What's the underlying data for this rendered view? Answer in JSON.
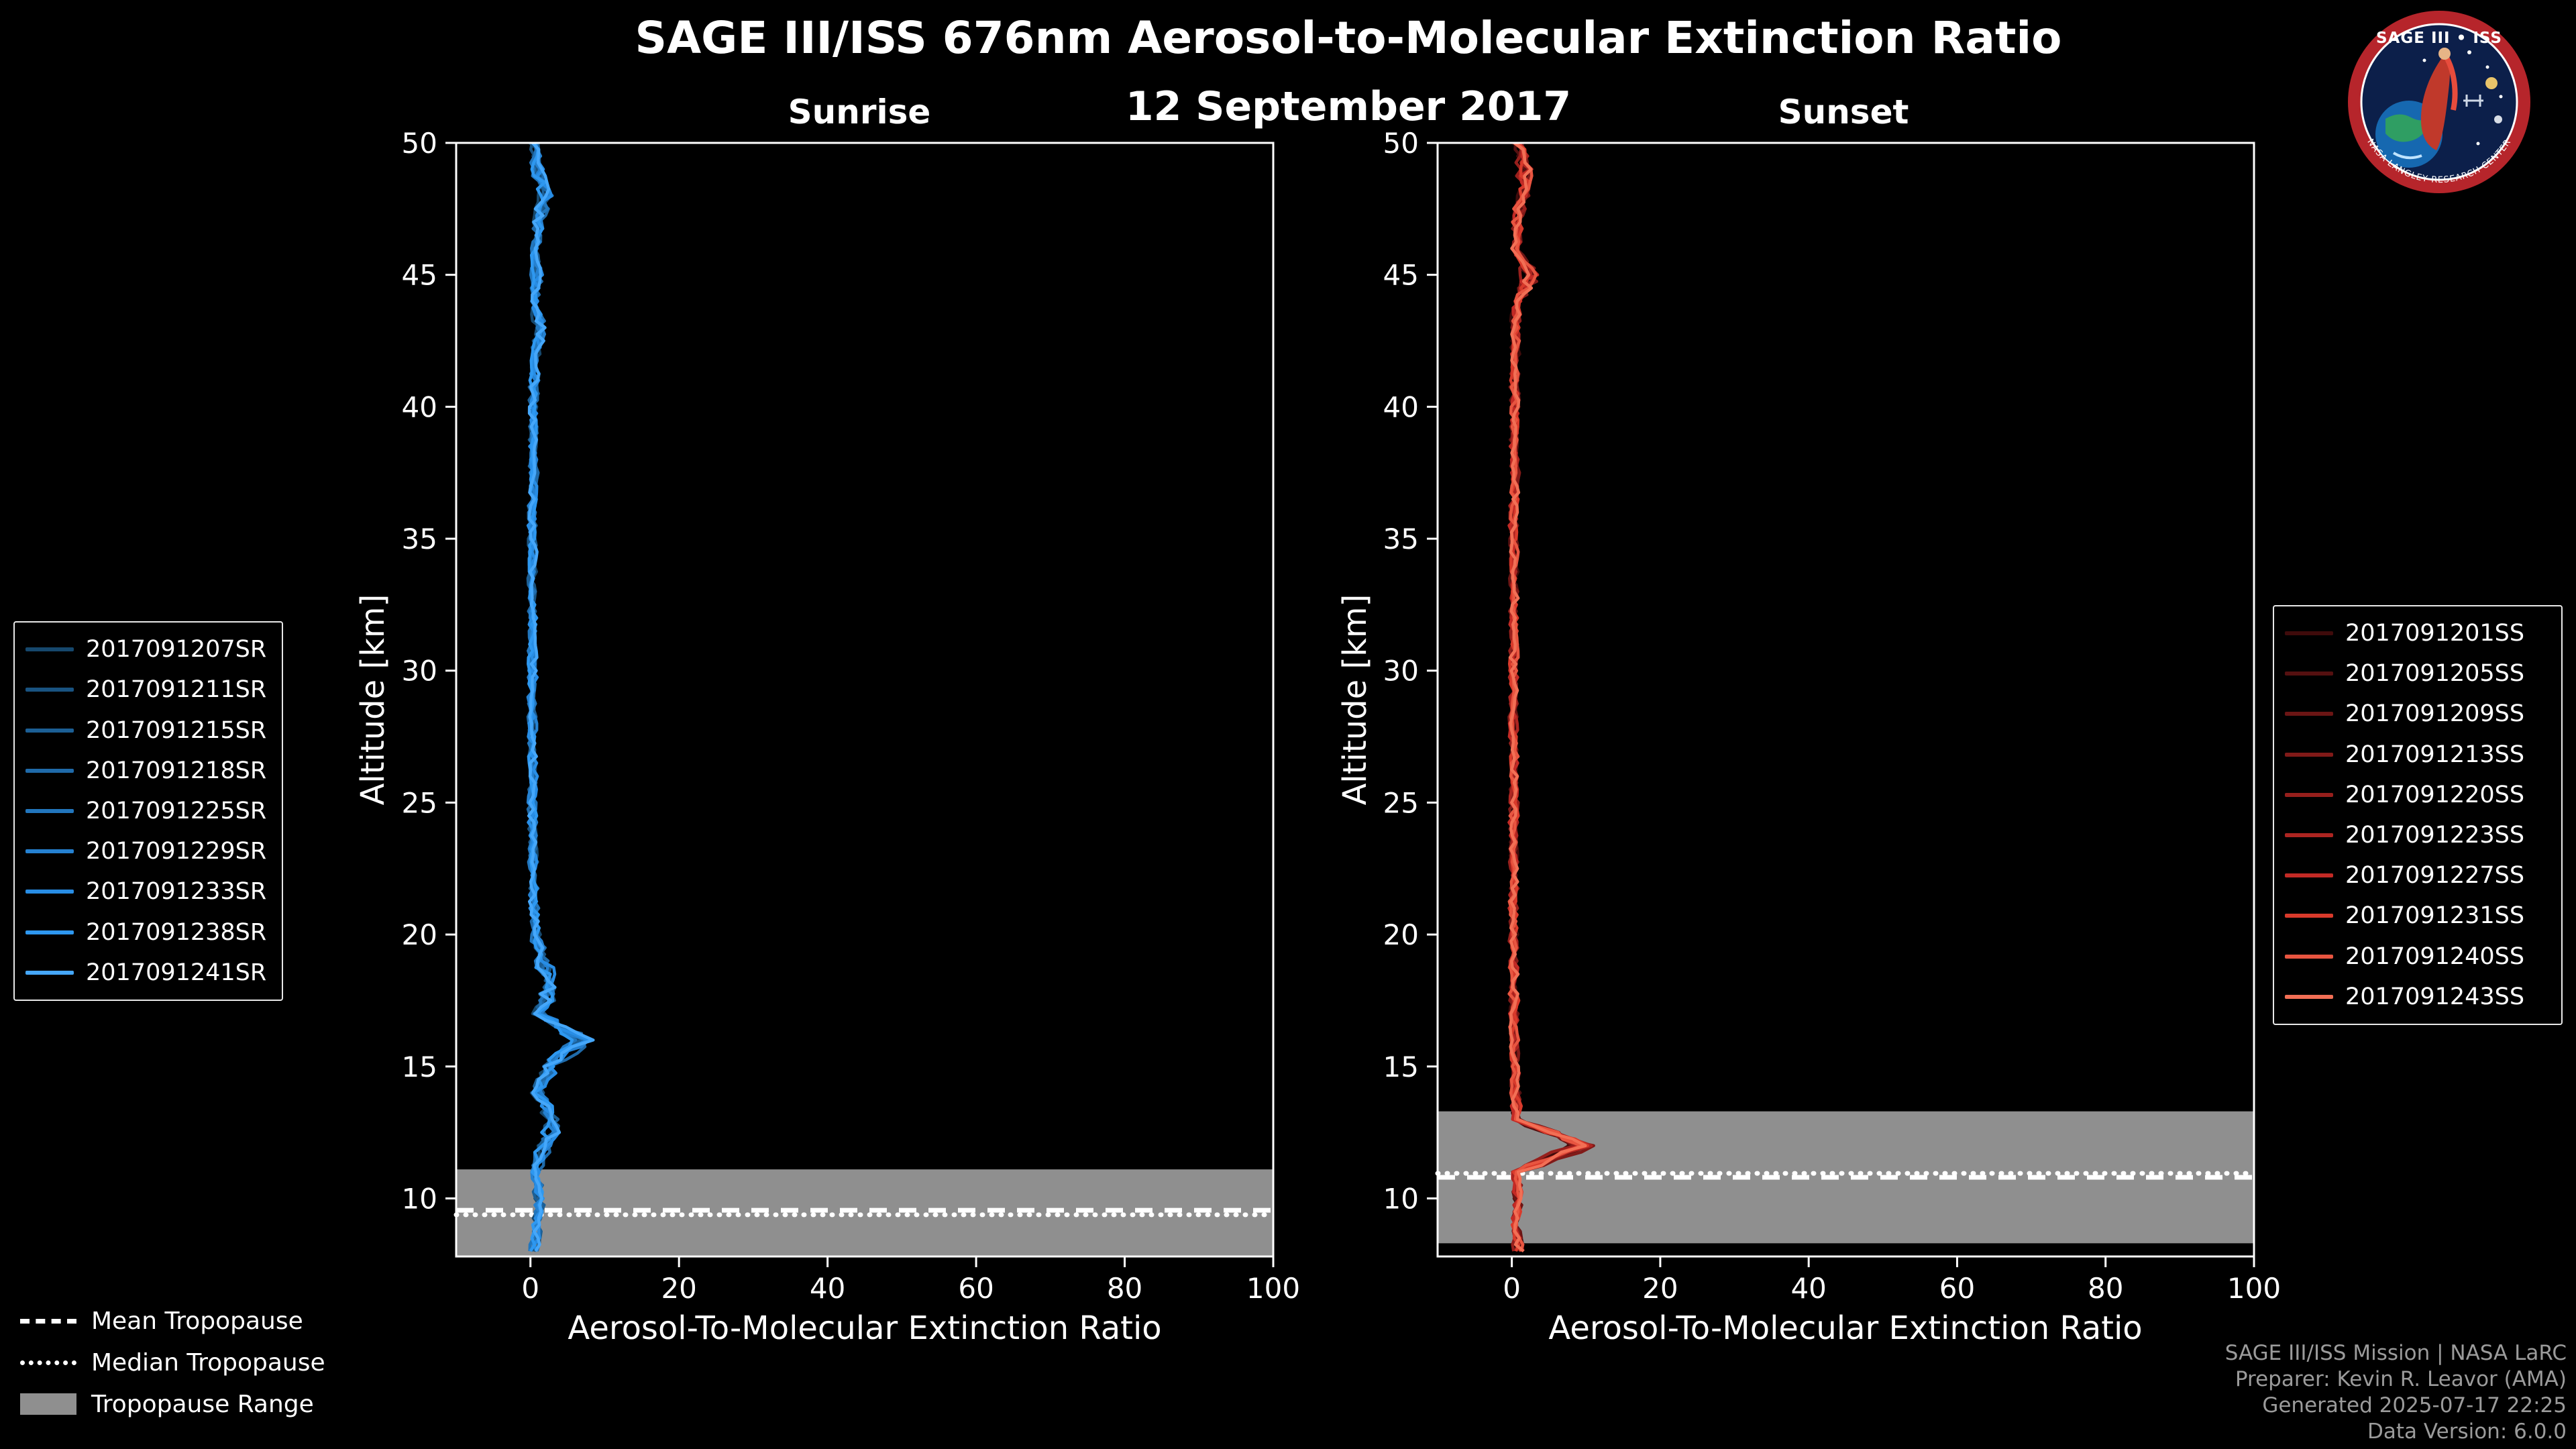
{
  "colors": {
    "background": "#000000",
    "text": "#ffffff",
    "muted_text": "#9b9b9b",
    "tropopause_band": "#8f8f8f",
    "tropopause_lines": "#ffffff"
  },
  "header": {
    "title": "SAGE III/ISS 676nm Aerosol-to-Molecular Extinction Ratio",
    "date": "12 September 2017"
  },
  "logo": {
    "title": "SAGE III • ISS",
    "arc_text": "NASA LANGLEY RESEARCH CENTER"
  },
  "tropopause_legend": {
    "items": [
      {
        "label": "Mean Tropopause",
        "style": "dashed"
      },
      {
        "label": "Median Tropopause",
        "style": "dotted"
      },
      {
        "label": "Tropopause Range",
        "style": "patch"
      }
    ]
  },
  "footer": {
    "lines": [
      "SAGE III/ISS Mission | NASA LaRC",
      "Preparer: Kevin R. Leavor (AMA)",
      "Generated 2025-07-17 22:25",
      "Data Version: 6.0.0"
    ]
  },
  "chart_data": [
    {
      "type": "line",
      "panel": "sunrise",
      "title": "Sunrise",
      "xlabel": "Aerosol-To-Molecular Extinction Ratio",
      "ylabel": "Altitude [km]",
      "xlim": [
        -10,
        100
      ],
      "ylim": [
        7.8,
        50
      ],
      "xticks": [
        0,
        20,
        40,
        60,
        80,
        100
      ],
      "yticks": [
        10,
        15,
        20,
        25,
        30,
        35,
        40,
        45,
        50
      ],
      "grid": false,
      "legend_position": "outside-left",
      "note": "Nine nearly-overlapping vertical extinction-ratio profiles; values = profile_mean x values_scale with small member-to-member spread. Enhancements near 16 km and 18 km, broad low values 20-50 km.",
      "altitudes_km": [
        8,
        9,
        10,
        11,
        12,
        13,
        14,
        15,
        16,
        17,
        18,
        19,
        20,
        21,
        22,
        23,
        24,
        25,
        26,
        27,
        28,
        29,
        30,
        31,
        32,
        33,
        34,
        35,
        36,
        37,
        38,
        39,
        40,
        41,
        42,
        43,
        44,
        45,
        46,
        47,
        48,
        49,
        50
      ],
      "profile_mean": [
        0.5,
        1.0,
        1.2,
        0.6,
        1.8,
        3.5,
        1.0,
        2.5,
        7.0,
        1.2,
        3.0,
        1.5,
        0.8,
        0.5,
        0.4,
        0.3,
        0.3,
        0.2,
        0.3,
        0.2,
        0.3,
        0.2,
        0.3,
        0.2,
        0.3,
        0.2,
        0.3,
        0.2,
        0.3,
        0.4,
        0.3,
        0.5,
        0.4,
        0.6,
        0.8,
        1.5,
        0.5,
        0.8,
        0.6,
        1.2,
        2.0,
        1.0,
        0.5
      ],
      "ensemble_spread": 0.9,
      "tropopause": {
        "mean_km": 9.55,
        "median_km": 9.38,
        "range_km": [
          7.8,
          11.1
        ]
      },
      "series": [
        {
          "name": "2017091207SR",
          "color": "#16486d",
          "values_scale": 0.88
        },
        {
          "name": "2017091211SR",
          "color": "#195381",
          "values_scale": 1.05
        },
        {
          "name": "2017091215SR",
          "color": "#1c5f95",
          "values_scale": 0.95
        },
        {
          "name": "2017091218SR",
          "color": "#1f6aa9",
          "values_scale": 1.1
        },
        {
          "name": "2017091225SR",
          "color": "#2276bd",
          "values_scale": 0.9
        },
        {
          "name": "2017091229SR",
          "color": "#2581d1",
          "values_scale": 1.0
        },
        {
          "name": "2017091233SR",
          "color": "#288de5",
          "values_scale": 1.12
        },
        {
          "name": "2017091238SR",
          "color": "#2e98f0",
          "values_scale": 0.93
        },
        {
          "name": "2017091241SR",
          "color": "#45a7fa",
          "values_scale": 1.02
        }
      ]
    },
    {
      "type": "line",
      "panel": "sunset",
      "title": "Sunset",
      "xlabel": "Aerosol-To-Molecular Extinction Ratio",
      "ylabel": "Altitude [km]",
      "xlim": [
        -10,
        100
      ],
      "ylim": [
        7.8,
        50
      ],
      "xticks": [
        0,
        20,
        40,
        60,
        80,
        100
      ],
      "yticks": [
        10,
        15,
        20,
        25,
        30,
        35,
        40,
        45,
        50
      ],
      "grid": false,
      "legend_position": "outside-right",
      "note": "Ten nearly-overlapping profiles; sharp enhancement near 12 km (~10), small wiggles near 45 and 48-49 km.",
      "altitudes_km": [
        8,
        9,
        10,
        11,
        12,
        13,
        14,
        15,
        16,
        17,
        18,
        19,
        20,
        21,
        22,
        23,
        24,
        25,
        26,
        27,
        28,
        29,
        30,
        31,
        32,
        33,
        34,
        35,
        36,
        37,
        38,
        39,
        40,
        41,
        42,
        43,
        44,
        45,
        46,
        47,
        48,
        49,
        50
      ],
      "profile_mean": [
        1.0,
        0.5,
        0.8,
        0.5,
        9.5,
        0.8,
        0.5,
        0.4,
        0.3,
        0.3,
        0.3,
        0.2,
        0.3,
        0.2,
        0.3,
        0.2,
        0.2,
        0.3,
        0.2,
        0.3,
        0.2,
        0.3,
        0.2,
        0.3,
        0.2,
        0.3,
        0.3,
        0.2,
        0.3,
        0.4,
        0.3,
        0.4,
        0.5,
        0.4,
        0.6,
        0.5,
        0.8,
        2.5,
        0.6,
        0.8,
        1.5,
        2.0,
        0.8
      ],
      "ensemble_spread": 0.9,
      "tropopause": {
        "mean_km": 10.8,
        "median_km": 10.95,
        "range_km": [
          8.3,
          13.3
        ]
      },
      "series": [
        {
          "name": "2017091201SS",
          "color": "#3f0b0b",
          "values_scale": 0.9
        },
        {
          "name": "2017091205SS",
          "color": "#551010",
          "values_scale": 1.05
        },
        {
          "name": "2017091209SS",
          "color": "#6b1514",
          "values_scale": 0.95
        },
        {
          "name": "2017091213SS",
          "color": "#811a18",
          "values_scale": 1.1
        },
        {
          "name": "2017091220SS",
          "color": "#971f1c",
          "values_scale": 0.88
        },
        {
          "name": "2017091223SS",
          "color": "#ad2521",
          "values_scale": 1.0
        },
        {
          "name": "2017091227SS",
          "color": "#c32a25",
          "values_scale": 0.92
        },
        {
          "name": "2017091231SS",
          "color": "#d93a2b",
          "values_scale": 1.08
        },
        {
          "name": "2017091240SS",
          "color": "#e85540",
          "values_scale": 0.97
        },
        {
          "name": "2017091243SS",
          "color": "#f26f55",
          "values_scale": 1.03
        }
      ]
    }
  ]
}
